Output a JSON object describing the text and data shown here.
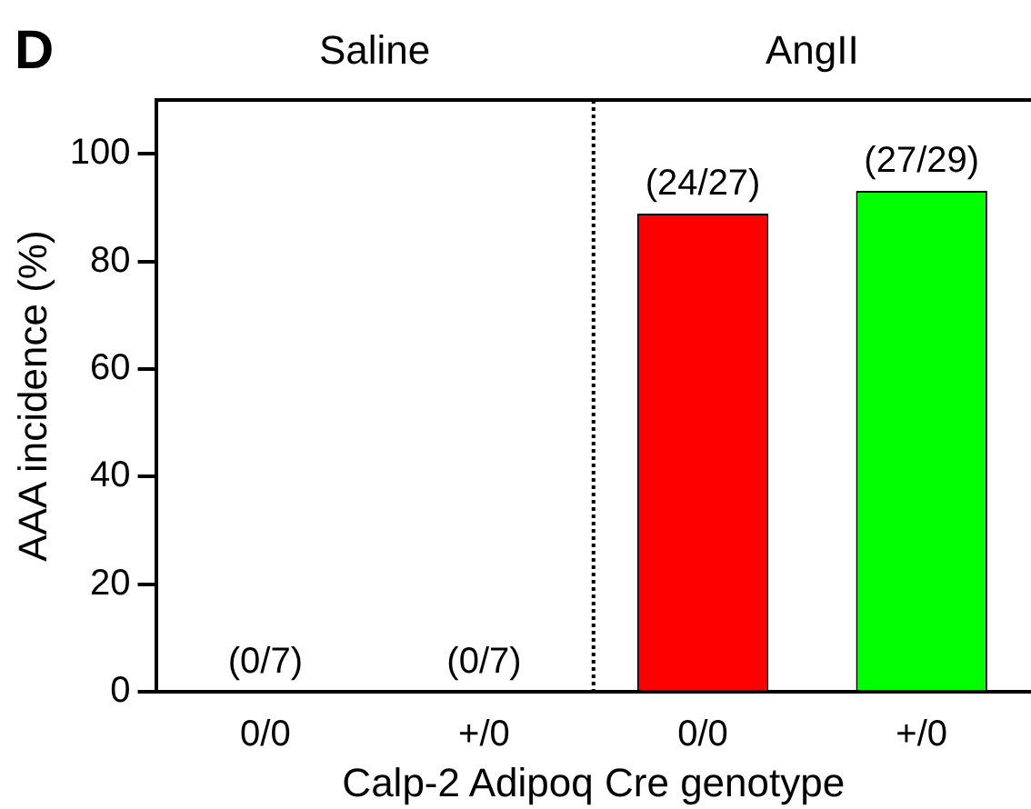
{
  "chart_data": {
    "type": "bar",
    "categories": [
      "0/0",
      "+/0",
      "0/0",
      "+/0"
    ],
    "values": [
      0,
      0,
      88.9,
      93.1
    ],
    "colors": [
      "#ff0000",
      "#00ff00",
      "#ff0000",
      "#00ff00"
    ],
    "value_labels": [
      "(0/7)",
      "(0/7)",
      "(24/27)",
      "(27/29)"
    ],
    "xlabel": "Calp-2 Adipoq Cre genotype",
    "ylabel": "AAA incidence (%)",
    "ylim": [
      0,
      110
    ],
    "yticks": [
      0,
      20,
      40,
      60,
      80,
      100
    ],
    "annotations": [
      "D",
      "Saline",
      "AngII"
    ],
    "grid": false,
    "legend": false
  }
}
